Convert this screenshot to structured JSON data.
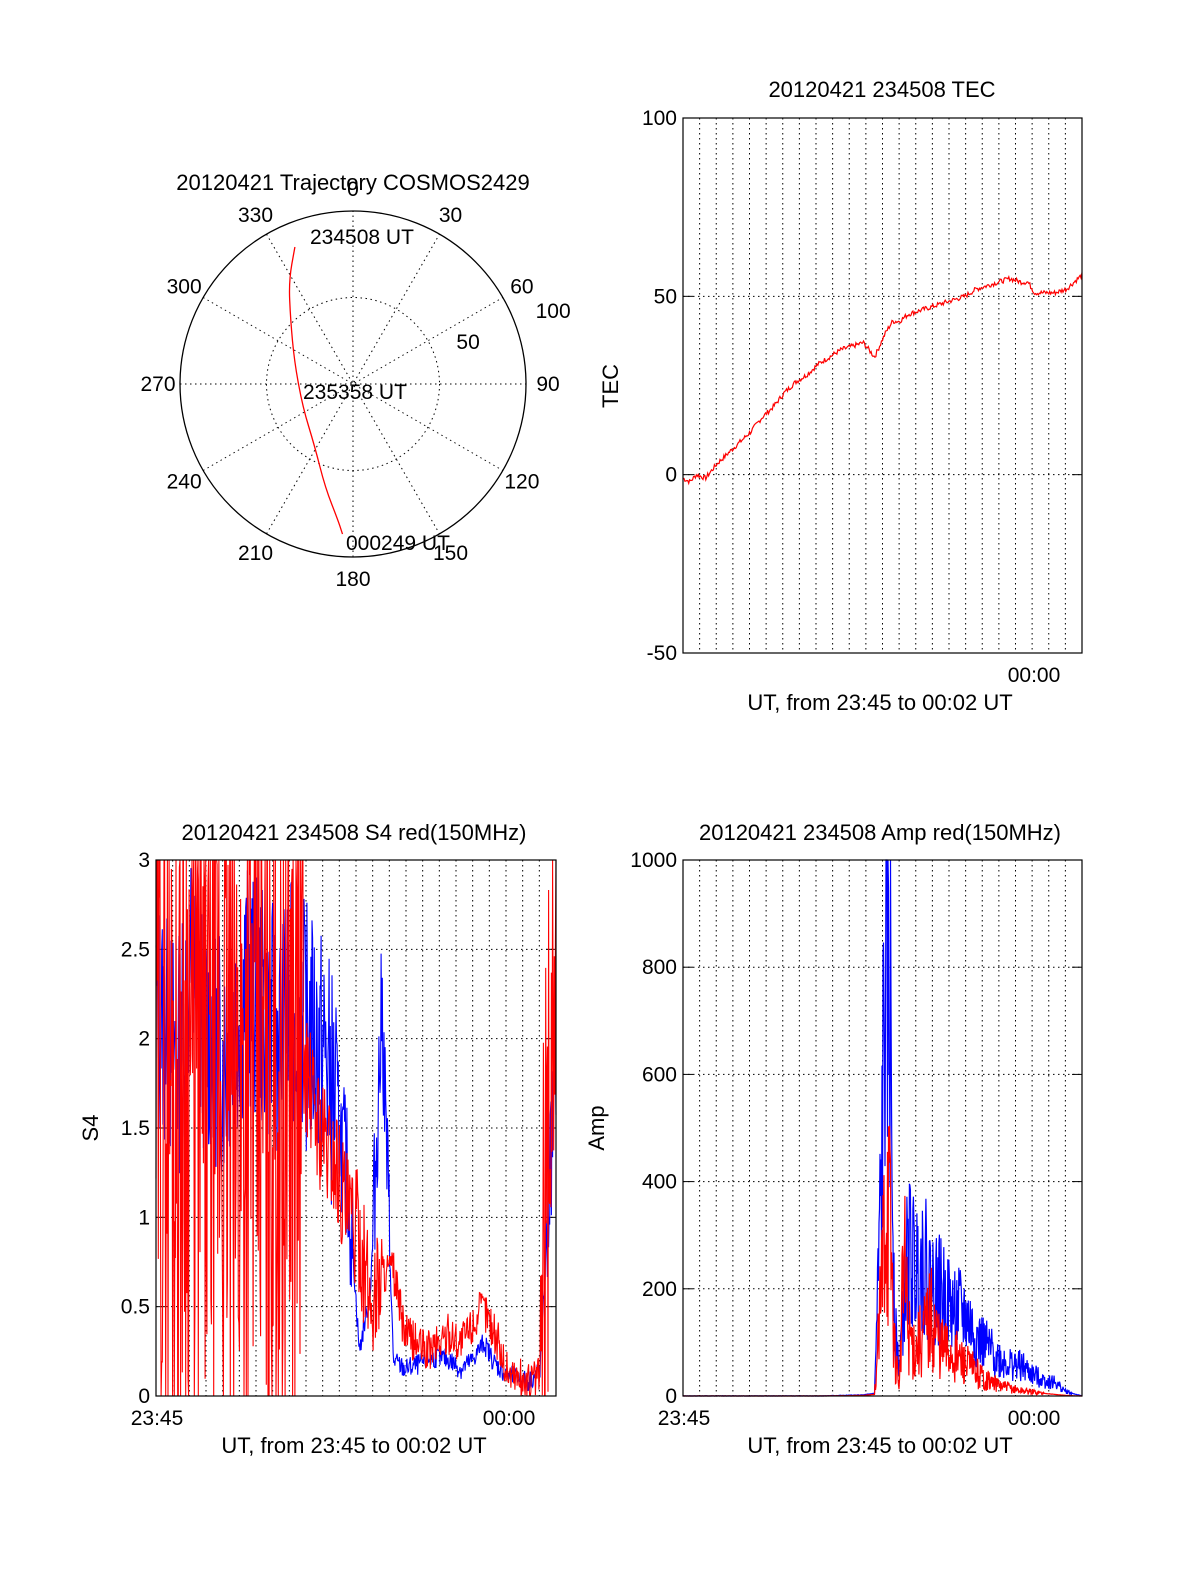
{
  "chart_data": [
    {
      "type": "polar",
      "title": "20120421 Trajectory COSMOS2429",
      "azimuth_labels": [
        "0",
        "30",
        "60",
        "90",
        "120",
        "150",
        "180",
        "210",
        "240",
        "270",
        "300",
        "330"
      ],
      "radial_labels": [
        "50",
        "100"
      ],
      "annotations": {
        "start": "234508 UT",
        "middle": "235358 UT",
        "end": "000249 UT"
      },
      "trajectory": [
        {
          "az": 337,
          "r": 86
        },
        {
          "az": 328,
          "r": 70
        },
        {
          "az": 316,
          "r": 52
        },
        {
          "az": 290,
          "r": 36
        },
        {
          "az": 245,
          "r": 32
        },
        {
          "az": 212,
          "r": 42
        },
        {
          "az": 195,
          "r": 62
        },
        {
          "az": 186,
          "r": 80
        },
        {
          "az": 184,
          "r": 87
        }
      ],
      "colors": {
        "trajectory": "#ff0000"
      }
    },
    {
      "type": "line",
      "title": "20120421 234508 TEC",
      "ylabel": "TEC",
      "xlabel": "UT, from 23:45 to 00:02 UT",
      "x_tick_label": "00:00",
      "xlim_minutes": [
        0,
        17.7
      ],
      "x_tick_minute": 15,
      "ylim": [
        -50,
        100
      ],
      "yticks": [
        "-50",
        "0",
        "50",
        "100"
      ],
      "series": [
        {
          "x": [
            0,
            0.3,
            0.6,
            1.0,
            1.5,
            2.0,
            2.5,
            3.0,
            3.5,
            4.0,
            4.5,
            5.0,
            5.5,
            6.0,
            6.5,
            7.0,
            7.5,
            8.0,
            8.5,
            9.0,
            9.3,
            9.6,
            10.0,
            10.5,
            11.0,
            11.5,
            12.0,
            12.5,
            13.0,
            13.5,
            14.0,
            14.5,
            15.0,
            15.3,
            15.6,
            16.0,
            16.5,
            17.0,
            17.7
          ],
          "y": [
            -1,
            -2,
            0,
            -1,
            3,
            6,
            9,
            12,
            16,
            19,
            23,
            26,
            28,
            31,
            33,
            35,
            36,
            37,
            33,
            40,
            43,
            43,
            45,
            46,
            47,
            48,
            49,
            50,
            52,
            53,
            54,
            55,
            54,
            54,
            51,
            51,
            51,
            52,
            56
          ]
        }
      ],
      "colors": {
        "series": "#ff0000"
      }
    },
    {
      "type": "line",
      "title": "20120421 234508 S4 red(150MHz)",
      "ylabel": "S4",
      "xlabel": "UT, from 23:45 to 00:02 UT",
      "x_tick_labels": [
        "23:45",
        "00:00"
      ],
      "xlim_minutes": [
        0,
        17.7
      ],
      "ylim": [
        0,
        3
      ],
      "yticks": [
        "0",
        "0.5",
        "1",
        "1.5",
        "2",
        "2.5",
        "3"
      ],
      "series": [
        {
          "name": "",
          "x": [
            0,
            0.5,
            1,
            1.5,
            2,
            2.5,
            3,
            3.5,
            4,
            4.5,
            5,
            5.5,
            6,
            6.5,
            7,
            7.5,
            8,
            8.5,
            9,
            9.5,
            10,
            10.5,
            11,
            11.5,
            12,
            12.5,
            13,
            13.5,
            14,
            14.5,
            15,
            15.5,
            16,
            16.5,
            17,
            17.7
          ],
          "y": [
            2.2,
            2.0,
            1.9,
            2.4,
            2.1,
            2.0,
            1.9,
            2.1,
            2.3,
            2.2,
            2.1,
            2.0,
            2.2,
            2.1,
            2.0,
            1.9,
            1.6,
            1.2,
            0.25,
            0.6,
            2.2,
            0.2,
            0.15,
            0.17,
            0.2,
            0.22,
            0.2,
            0.15,
            0.2,
            0.3,
            0.18,
            0.12,
            0.1,
            0.08,
            0.15,
            1.9
          ]
        },
        {
          "name": "",
          "x": [
            0,
            0.5,
            1,
            1.5,
            2,
            2.5,
            3,
            3.5,
            4,
            4.5,
            5,
            5.5,
            6,
            6.5,
            7,
            7.5,
            8,
            8.5,
            9,
            9.5,
            10,
            10.5,
            11,
            11.5,
            12,
            12.5,
            13,
            13.5,
            14,
            14.5,
            15,
            15.5,
            16,
            16.5,
            17,
            17.7
          ],
          "y": [
            1.8,
            1.9,
            1.8,
            2.0,
            1.7,
            1.9,
            1.8,
            1.6,
            1.8,
            1.9,
            1.7,
            1.8,
            2.0,
            1.9,
            1.6,
            1.4,
            1.3,
            1.0,
            0.9,
            0.5,
            0.7,
            0.7,
            0.35,
            0.3,
            0.25,
            0.3,
            0.35,
            0.3,
            0.4,
            0.5,
            0.35,
            0.15,
            0.1,
            0.07,
            0.12,
            2.8
          ]
        }
      ],
      "colors": {
        "blue": "#0000ff",
        "red": "#ff0000"
      }
    },
    {
      "type": "line",
      "title": "20120421 234508 Amp red(150MHz)",
      "ylabel": "Amp",
      "xlabel": "UT, from 23:45 to 00:02 UT",
      "x_tick_labels": [
        "23:45",
        "00:00"
      ],
      "xlim_minutes": [
        0,
        17.7
      ],
      "ylim": [
        0,
        1000
      ],
      "yticks": [
        "0",
        "200",
        "400",
        "600",
        "800",
        "1000"
      ],
      "series": [
        {
          "name": "",
          "x": [
            0,
            2,
            4,
            6,
            8,
            8.5,
            8.8,
            9.0,
            9.2,
            9.4,
            9.6,
            9.8,
            10.0,
            10.3,
            10.6,
            11.0,
            11.5,
            12.0,
            12.5,
            13.0,
            13.5,
            14.0,
            14.5,
            15.0,
            15.5,
            16.0,
            16.5,
            17.0,
            17.7
          ],
          "y": [
            0,
            0,
            0,
            0,
            2,
            5,
            400,
            860,
            700,
            120,
            60,
            180,
            280,
            230,
            260,
            210,
            190,
            160,
            150,
            110,
            90,
            70,
            60,
            55,
            40,
            30,
            25,
            8,
            0
          ]
        },
        {
          "name": "",
          "x": [
            0,
            2,
            4,
            6,
            8,
            8.5,
            8.8,
            9.0,
            9.2,
            9.4,
            9.6,
            9.8,
            10.0,
            10.3,
            10.6,
            11.0,
            11.5,
            12.0,
            12.5,
            13.0,
            13.5,
            14.0,
            14.5,
            15.0,
            15.5,
            16.0,
            16.5,
            17.0,
            17.7
          ],
          "y": [
            0,
            0,
            0,
            0,
            1,
            3,
            180,
            420,
            300,
            80,
            20,
            260,
            120,
            90,
            110,
            150,
            90,
            80,
            60,
            45,
            30,
            20,
            15,
            10,
            8,
            5,
            3,
            1,
            0
          ]
        }
      ],
      "colors": {
        "blue": "#0000ff",
        "red": "#ff0000"
      }
    }
  ]
}
